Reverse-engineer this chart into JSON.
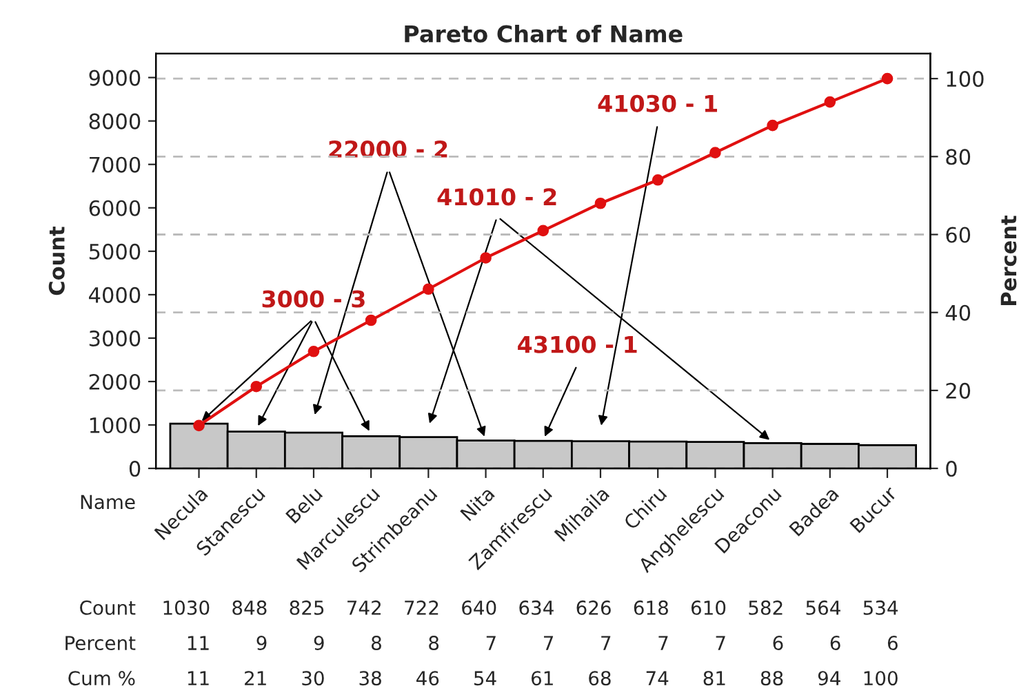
{
  "chart_data": {
    "type": "bar",
    "title": "Pareto Chart of Name",
    "xlabel": "Name",
    "ylabel": "Count",
    "y2label": "Percent",
    "categories": [
      "Necula",
      "Stanescu",
      "Belu",
      "Marculescu",
      "Strimbeanu",
      "Nita",
      "Zamfirescu",
      "Mihaila",
      "Chiru",
      "Anghelescu",
      "Deaconu",
      "Badea",
      "Bucur"
    ],
    "series": [
      {
        "color": "#c8c8c8",
        "values": [
          1030,
          848,
          825,
          742,
          722,
          640,
          634,
          626,
          618,
          610,
          582,
          564,
          534
        ]
      },
      {
        "type": "line",
        "axis": "y2",
        "color": "#e01010",
        "values": [
          11,
          21,
          30,
          38,
          46,
          54,
          61,
          68,
          74,
          81,
          88,
          94,
          100
        ]
      }
    ],
    "data_labels": true,
    "ylim": [
      0,
      9550
    ],
    "yticks": [
      0,
      1000,
      2000,
      3000,
      4000,
      5000,
      6000,
      7000,
      8000,
      9000
    ],
    "y2lim": [
      0,
      106.4
    ],
    "y2ticks": [
      0,
      20,
      40,
      60,
      80,
      100
    ],
    "grid": "y",
    "marker": "circle",
    "line_style": "solid",
    "annotations": [
      {
        "text": "3000 - 3",
        "x": "Necula",
        "y": 1030
      },
      "22000 - 2",
      "41010 - 2",
      "43100 - 1",
      "41030 - 1",
      "Count",
      "Percent",
      "Cum %",
      "11",
      "9",
      "9",
      "8",
      "8",
      "7",
      "7",
      "7",
      "7",
      "7",
      "6",
      "6",
      "6"
    ]
  }
}
